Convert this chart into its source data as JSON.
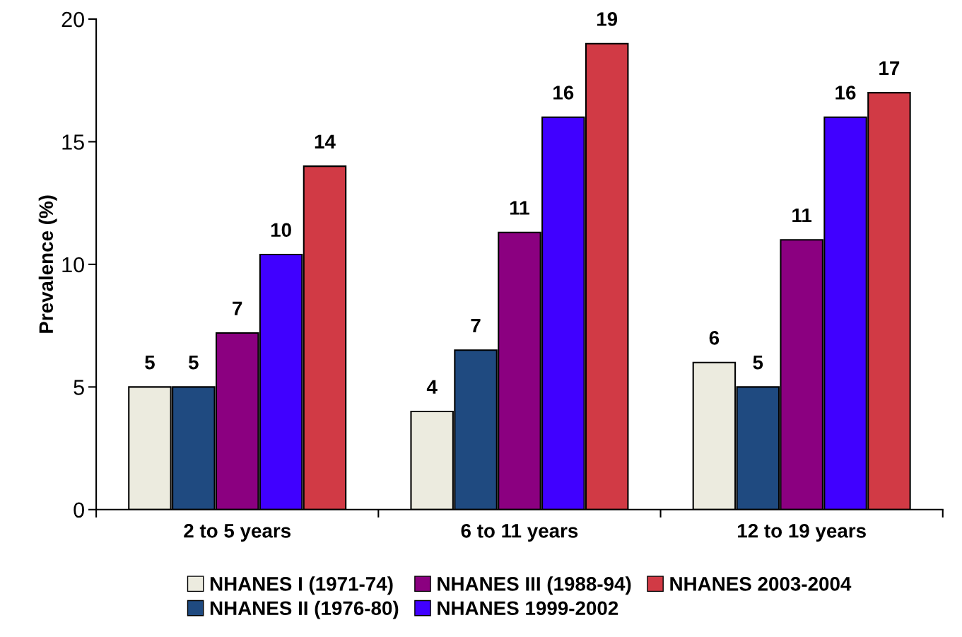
{
  "chart_data": {
    "type": "bar",
    "ylabel": "Prevalence (%)",
    "categories": [
      "2 to 5 years",
      "6 to 11 years",
      "12 to 19 years"
    ],
    "series": [
      {
        "name": "NHANES I (1971-74)",
        "color": "#ecebdf",
        "values": [
          5,
          4,
          6
        ],
        "value_labels": [
          "5",
          "4",
          "6"
        ]
      },
      {
        "name": "NHANES II (1976-80)",
        "color": "#1f4a80",
        "values": [
          5,
          6.5,
          5
        ],
        "value_labels": [
          "5",
          "7",
          "5"
        ]
      },
      {
        "name": "NHANES III (1988-94)",
        "color": "#8b0080",
        "values": [
          7.2,
          11.3,
          11
        ],
        "value_labels": [
          "7",
          "11",
          "11"
        ]
      },
      {
        "name": "NHANES 1999-2002",
        "color": "#4000ff",
        "values": [
          10.4,
          16,
          16
        ],
        "value_labels": [
          "10",
          "16",
          "16"
        ]
      },
      {
        "name": "NHANES 2003-2004",
        "color": "#d13a45",
        "values": [
          14,
          19,
          17
        ],
        "value_labels": [
          "14",
          "19",
          "17"
        ]
      }
    ],
    "ylim": [
      0,
      20
    ],
    "yticks": [
      0,
      5,
      10,
      15,
      20
    ],
    "grid": false,
    "legend": "bottom"
  }
}
